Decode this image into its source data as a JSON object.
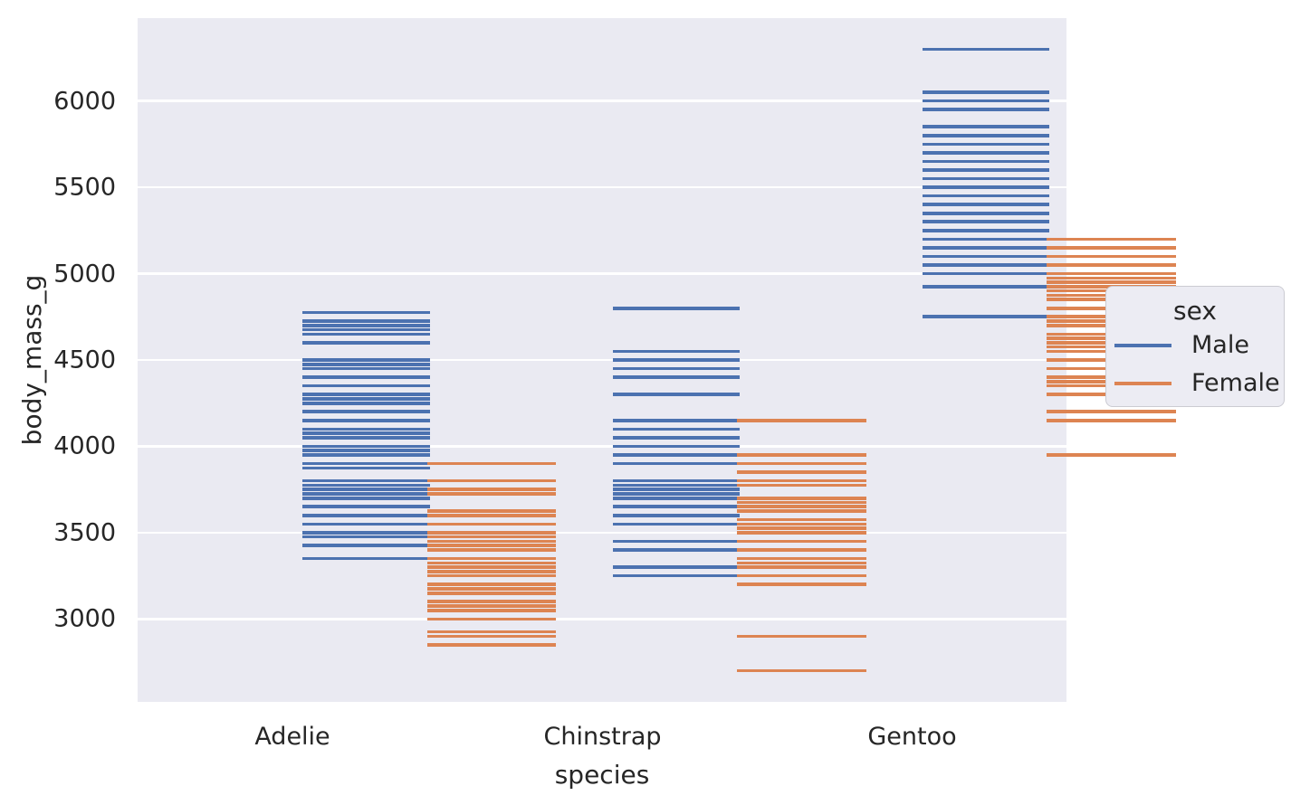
{
  "chart_data": {
    "type": "scatter",
    "marker": "horizontal-tick",
    "title": "",
    "xlabel": "species",
    "ylabel": "body_mass_g",
    "categories": [
      "Adelie",
      "Chinstrap",
      "Gentoo"
    ],
    "yticks": [
      3000,
      3500,
      4000,
      4500,
      5000,
      5500,
      6000
    ],
    "ylim": [
      2520,
      6480
    ],
    "grid": "horizontal white gridlines on lavender panel",
    "legend": {
      "title": "sex",
      "position": "right-outside",
      "entries": [
        {
          "label": "Male",
          "color": "#4c72b0"
        },
        {
          "label": "Female",
          "color": "#dd8452"
        }
      ]
    },
    "series": [
      {
        "species": "Adelie",
        "sex": "Male",
        "color": "#4c72b0",
        "values": [
          4775,
          4725,
          4700,
          4675,
          4650,
          4600,
          4500,
          4475,
          4450,
          4400,
          4350,
          4300,
          4275,
          4250,
          4200,
          4150,
          4100,
          4075,
          4050,
          4000,
          3975,
          3950,
          3900,
          3875,
          3800,
          3775,
          3750,
          3725,
          3700,
          3650,
          3600,
          3550,
          3500,
          3475,
          3425,
          3350
        ]
      },
      {
        "species": "Adelie",
        "sex": "Female",
        "color": "#dd8452",
        "values": [
          3900,
          3800,
          3750,
          3725,
          3625,
          3600,
          3550,
          3500,
          3475,
          3450,
          3425,
          3400,
          3350,
          3325,
          3300,
          3275,
          3250,
          3200,
          3175,
          3150,
          3100,
          3075,
          3050,
          3000,
          2925,
          2900,
          2850
        ]
      },
      {
        "species": "Chinstrap",
        "sex": "Male",
        "color": "#4c72b0",
        "values": [
          4800,
          4550,
          4500,
          4450,
          4400,
          4300,
          4150,
          4100,
          4050,
          4000,
          3950,
          3900,
          3800,
          3775,
          3750,
          3725,
          3700,
          3650,
          3600,
          3550,
          3450,
          3400,
          3300,
          3250
        ]
      },
      {
        "species": "Chinstrap",
        "sex": "Female",
        "color": "#dd8452",
        "values": [
          4150,
          3950,
          3900,
          3850,
          3800,
          3775,
          3700,
          3675,
          3650,
          3625,
          3575,
          3550,
          3525,
          3500,
          3450,
          3400,
          3350,
          3325,
          3300,
          3250,
          3200,
          2900,
          2700
        ]
      },
      {
        "species": "Gentoo",
        "sex": "Male",
        "color": "#4c72b0",
        "values": [
          6300,
          6050,
          6000,
          5950,
          5850,
          5800,
          5750,
          5700,
          5650,
          5600,
          5550,
          5500,
          5450,
          5400,
          5350,
          5300,
          5250,
          5200,
          5150,
          5100,
          5050,
          5000,
          4925,
          4750
        ]
      },
      {
        "species": "Gentoo",
        "sex": "Female",
        "color": "#dd8452",
        "values": [
          5200,
          5150,
          5100,
          5050,
          5000,
          4975,
          4950,
          4925,
          4900,
          4875,
          4850,
          4800,
          4750,
          4725,
          4700,
          4650,
          4625,
          4600,
          4575,
          4550,
          4500,
          4450,
          4400,
          4375,
          4350,
          4300,
          4200,
          4150,
          3950
        ]
      }
    ]
  },
  "colors": {
    "male": "#4c72b0",
    "female": "#dd8452",
    "plot_bg": "#eaeaf2",
    "grid": "#ffffff",
    "text": "#262626",
    "legend_bg": "#ececf3",
    "legend_border": "#cbcbd2"
  }
}
